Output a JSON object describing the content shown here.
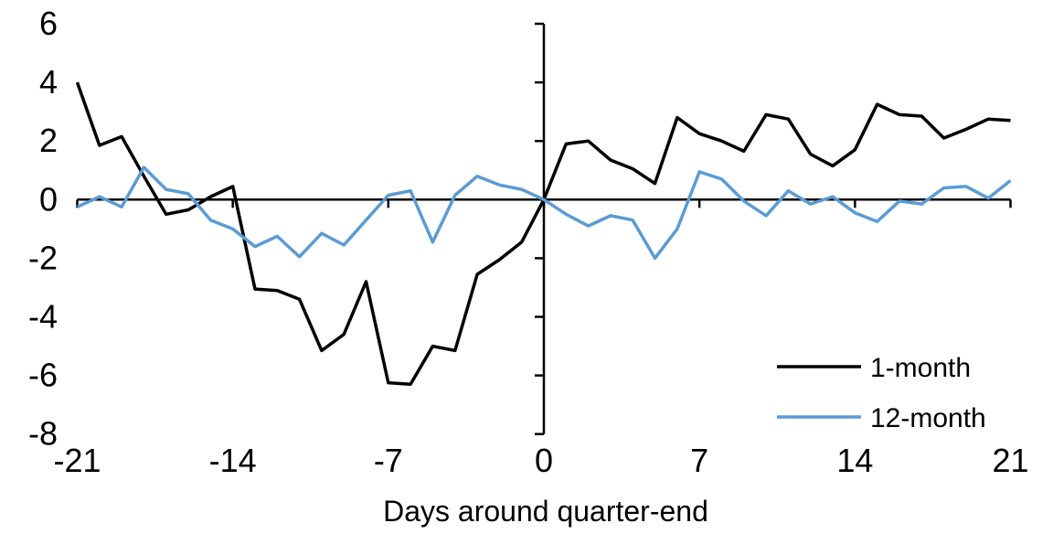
{
  "chart_data": {
    "type": "line",
    "title": "",
    "xlabel": "Days around quarter-end",
    "ylabel": "",
    "xlim": [
      -21,
      21
    ],
    "ylim": [
      -8,
      6
    ],
    "x_ticks": [
      -21,
      -14,
      -7,
      0,
      7,
      14,
      21
    ],
    "y_ticks": [
      6,
      4,
      2,
      0,
      -2,
      -4,
      -6,
      -8
    ],
    "grid": false,
    "legend_position": "lower-right",
    "x": [
      -21,
      -20,
      -19,
      -18,
      -17,
      -16,
      -15,
      -14,
      -13,
      -12,
      -11,
      -10,
      -9,
      -8,
      -7,
      -6,
      -5,
      -4,
      -3,
      -2,
      -1,
      0,
      1,
      2,
      3,
      4,
      5,
      6,
      7,
      8,
      9,
      10,
      11,
      12,
      13,
      14,
      15,
      16,
      17,
      18,
      19,
      20,
      21
    ],
    "series": [
      {
        "name": "1-month",
        "color": "#000000",
        "values": [
          4.0,
          1.85,
          2.15,
          0.8,
          -0.5,
          -0.35,
          0.1,
          0.45,
          -3.05,
          -3.1,
          -3.4,
          -5.15,
          -4.6,
          -2.8,
          -6.25,
          -6.3,
          -5.0,
          -5.15,
          -2.55,
          -2.05,
          -1.45,
          0,
          1.9,
          2.0,
          1.35,
          1.05,
          0.55,
          2.8,
          2.25,
          2.0,
          1.65,
          2.9,
          2.75,
          1.55,
          1.15,
          1.7,
          3.25,
          2.9,
          2.85,
          2.1,
          2.4,
          2.75,
          2.7
        ]
      },
      {
        "name": "12-month",
        "color": "#5B9BD5",
        "values": [
          -0.25,
          0.1,
          -0.25,
          1.1,
          0.35,
          0.2,
          -0.7,
          -1.0,
          -1.6,
          -1.25,
          -1.95,
          -1.15,
          -1.55,
          -0.7,
          0.15,
          0.3,
          -1.45,
          0.15,
          0.8,
          0.5,
          0.35,
          0,
          -0.5,
          -0.9,
          -0.55,
          -0.7,
          -2.0,
          -1.0,
          0.95,
          0.7,
          -0.05,
          -0.55,
          0.3,
          -0.15,
          0.1,
          -0.45,
          -0.75,
          -0.05,
          -0.15,
          0.4,
          0.45,
          0.05,
          0.65
        ]
      }
    ],
    "axis_color": "#000000",
    "text_color": "#000000",
    "background_color": "#ffffff"
  }
}
